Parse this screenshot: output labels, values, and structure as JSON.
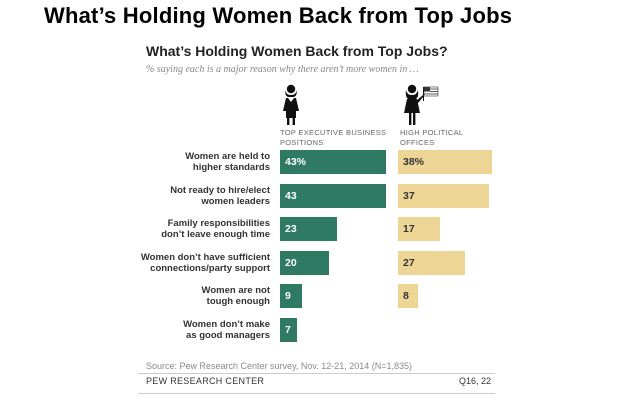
{
  "page_title": "What’s Holding Women Back from Top Jobs",
  "icons": {
    "business": "businesswoman-icon",
    "political": "woman-with-flag-icon"
  },
  "colors": {
    "business_bar": "#2e7a63",
    "political_bar": "#ecd595"
  },
  "chart_data": {
    "type": "bar",
    "orientation": "horizontal",
    "title": "What’s Holding Women Back from Top Jobs?",
    "subtitle": "% saying each is a major reason why there aren’t more women in …",
    "categories": [
      [
        "Women are held to",
        "higher standards"
      ],
      [
        "Not ready to hire/elect",
        "women leaders"
      ],
      [
        "Family responsibilities",
        "don’t leave enough time"
      ],
      [
        "Women don’t have sufficient",
        "connections/party support"
      ],
      [
        "Women are not",
        "tough enough"
      ],
      [
        "Women don’t make",
        "as good managers"
      ]
    ],
    "series": [
      {
        "name": "TOP EXECUTIVE BUSINESS POSITIONS",
        "header_lines": [
          "TOP EXECUTIVE BUSINESS",
          "POSITIONS"
        ],
        "values": [
          43,
          43,
          23,
          20,
          9,
          7
        ],
        "labels": [
          "43%",
          "43",
          "23",
          "20",
          "9",
          "7"
        ]
      },
      {
        "name": "HIGH POLITICAL OFFICES",
        "header_lines": [
          "HIGH POLITICAL",
          "OFFICES"
        ],
        "values": [
          38,
          37,
          17,
          27,
          8,
          null
        ],
        "labels": [
          "38%",
          "37",
          "17",
          "27",
          "8",
          ""
        ]
      }
    ],
    "xlim": [
      0,
      43
    ],
    "grid": false,
    "legend": "column headers above bars"
  },
  "source": "Source: Pew Research Center survey, Nov. 12-21, 2014 (N=1,835)",
  "organization": "PEW RESEARCH CENTER",
  "question_ref": "Q16, 22"
}
